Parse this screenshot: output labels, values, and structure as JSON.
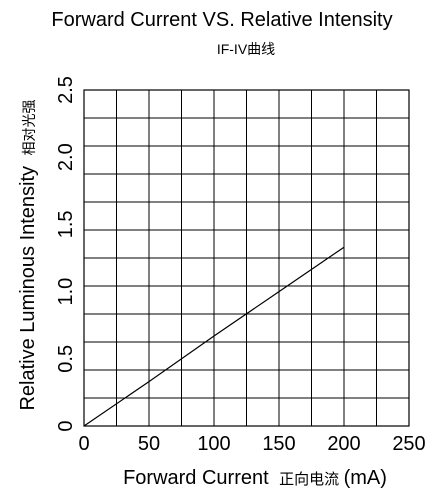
{
  "chart_data": {
    "type": "line",
    "title": "Forward Current VS. Relative Intensity",
    "subtitle": "IF-IV曲线",
    "xlabel": "Forward Current",
    "xlabel_cn": "正向电流",
    "xlabel_unit": "(mA)",
    "ylabel": "Relative Luminous Intensity",
    "ylabel_cn": "相对光强",
    "xlim": [
      0,
      250
    ],
    "ylim": [
      0,
      2.5
    ],
    "x_ticks": [
      "0",
      "50",
      "100",
      "150",
      "200",
      "250"
    ],
    "y_ticks": [
      "0",
      "0.5",
      "1.0",
      "1.5",
      "2.0",
      "2.5"
    ],
    "grid": true,
    "series": [
      {
        "x": [
          0,
          50,
          100,
          150,
          200
        ],
        "y": [
          0,
          0.33,
          0.67,
          1.0,
          1.33
        ]
      }
    ]
  }
}
